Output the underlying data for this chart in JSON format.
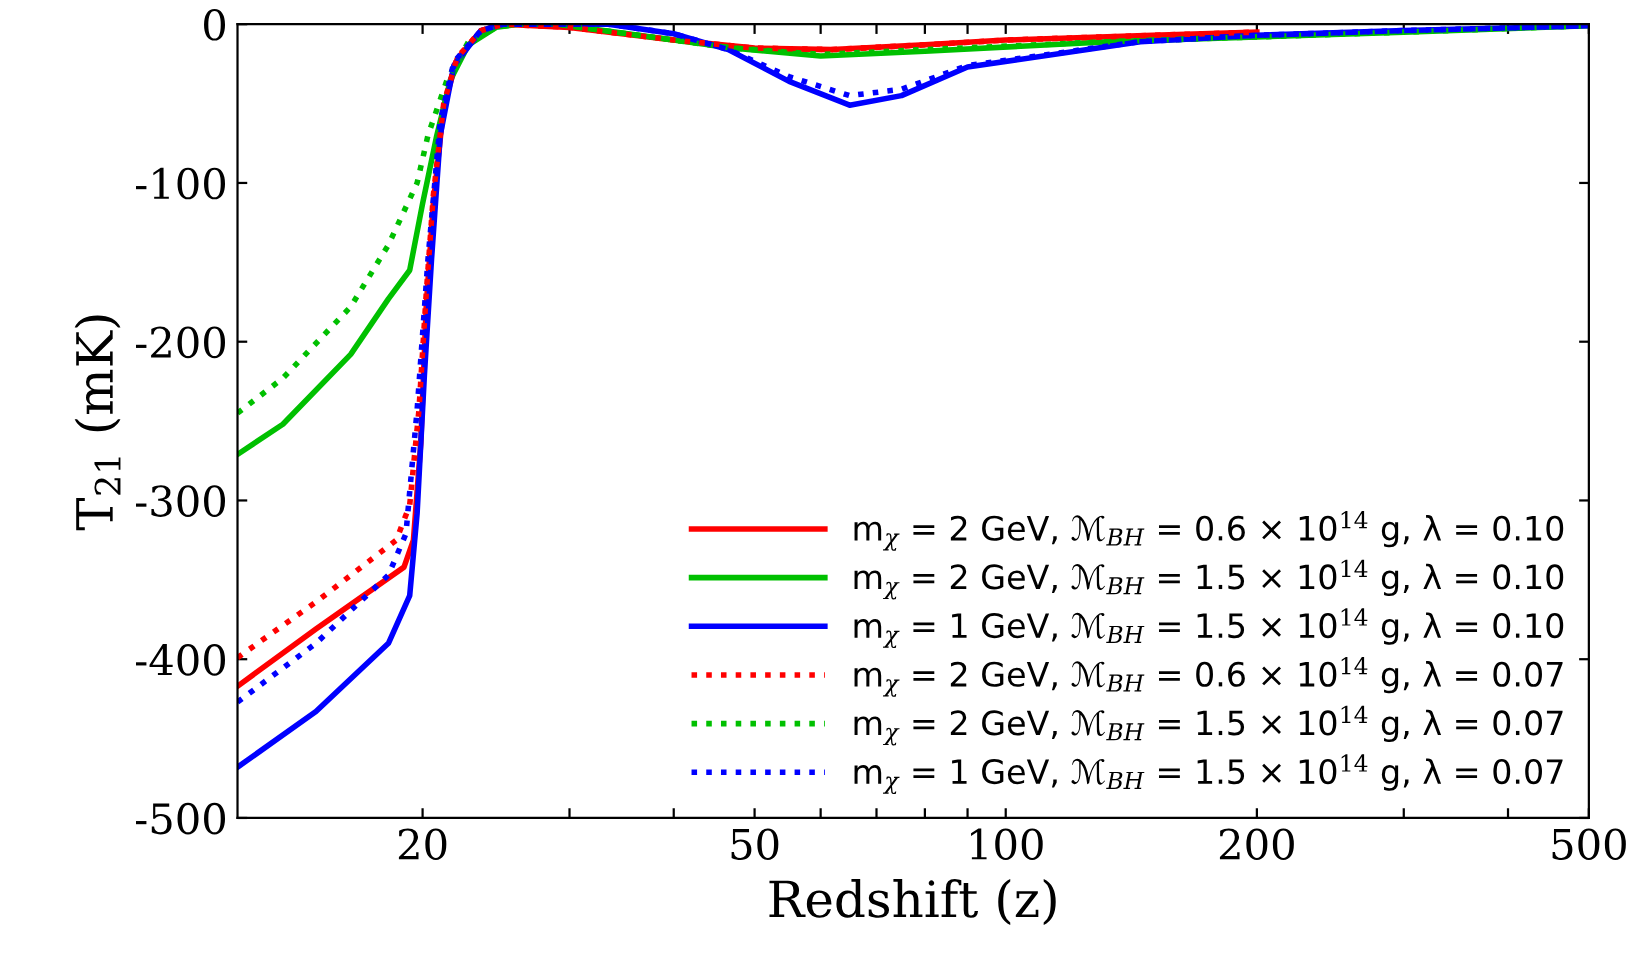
{
  "chart_data": {
    "type": "line",
    "xlabel": "Redshift (z)",
    "ylabel": "T$_{21}$ (mK)",
    "log": "x",
    "xlim": [
      12,
      500
    ],
    "ylim": [
      -500,
      0
    ],
    "xticks": [
      20,
      {
        "value": 30,
        "label": null
      },
      {
        "value": 40,
        "label": null
      },
      50,
      {
        "value": 60,
        "label": null
      },
      {
        "value": 70,
        "label": null
      },
      {
        "value": 80,
        "label": null
      },
      {
        "value": 90,
        "label": null
      },
      100,
      200,
      {
        "value": 300,
        "label": null
      },
      {
        "value": 400,
        "label": null
      },
      500
    ],
    "yticks": [
      -500,
      -400,
      -300,
      -200,
      -100,
      0
    ],
    "grid": false,
    "legend": "bottom right",
    "marker": "none",
    "series": [
      {
        "name": "m$_{χ}$ = 2 GeV, ℳ$_{BH}$ = 0.6 × 10$^{14}$ g, λ = 0.10",
        "color": "#ff0000",
        "line_style": "solid",
        "x": [
          12,
          14.9,
          19.0,
          19.5,
          19.9,
          20.2,
          20.6,
          21.2,
          22.0,
          23.5,
          25,
          30,
          40,
          50,
          62,
          80,
          100,
          150,
          200
        ],
        "values": [
          -417,
          -381,
          -342,
          -325,
          -264,
          -178,
          -113,
          -52,
          -22,
          -4,
          0,
          -2,
          -10,
          -15,
          -16,
          -13,
          -10,
          -7,
          -5
        ]
      },
      {
        "name": "m$_{χ}$ = 2 GeV, ℳ$_{BH}$ = 1.5 × 10$^{14}$ g, λ = 0.10",
        "color": "#00c000",
        "line_style": "solid",
        "x": [
          12,
          13.6,
          16.4,
          18.2,
          19.3,
          20.0,
          20.8,
          21.6,
          22.7,
          24.5,
          26,
          29,
          40,
          47,
          60,
          80,
          133,
          200,
          300,
          500
        ],
        "values": [
          -271,
          -252,
          -208,
          -173,
          -155,
          -113,
          -70,
          -35,
          -13,
          -2,
          0,
          0,
          -10,
          -15,
          -20,
          -17,
          -11,
          -8,
          -5,
          -1
        ]
      },
      {
        "name": "m$_{χ}$ = 1 GeV, ℳ$_{BH}$ = 1.5 × 10$^{14}$ g, λ = 0.10",
        "color": "#0000ff",
        "line_style": "solid",
        "x": [
          12,
          14.9,
          18.2,
          19.3,
          19.7,
          20.1,
          20.5,
          21.0,
          21.8,
          23.5,
          25,
          33.4,
          40,
          46.5,
          55,
          65,
          75,
          90,
          145,
          200,
          300,
          500
        ],
        "values": [
          -468,
          -433,
          -390,
          -360,
          -308,
          -221,
          -148,
          -70,
          -26,
          -4,
          0,
          0,
          -6,
          -16,
          -36,
          -51,
          -45,
          -27,
          -11,
          -7,
          -4,
          -1
        ]
      },
      {
        "name": "m$_{χ}$ = 2 GeV, ℳ$_{BH}$ = 0.6 × 10$^{14}$ g, λ = 0.07",
        "color": "#ff0000",
        "line_style": "dotted",
        "x": [
          12,
          14.9,
          18.6,
          19.3,
          19.8,
          20.2,
          20.6,
          21.2,
          22.0,
          23.5,
          25,
          30,
          40,
          50,
          62,
          80,
          100,
          150,
          200
        ],
        "values": [
          -399,
          -364,
          -325,
          -303,
          -243,
          -170,
          -108,
          -50,
          -21,
          -4,
          0,
          -2,
          -10,
          -15,
          -16,
          -13,
          -10,
          -7,
          -5
        ]
      },
      {
        "name": "m$_{χ}$ = 2 GeV, ℳ$_{BH}$ = 1.5 × 10$^{14}$ g, λ = 0.07",
        "color": "#00c000",
        "line_style": "dotted",
        "x": [
          12,
          13.6,
          16.4,
          18.2,
          19.7,
          20.3,
          21.4,
          22.7,
          24.5,
          26,
          29,
          40,
          47,
          60,
          80,
          133,
          200,
          300,
          500
        ],
        "values": [
          -245,
          -223,
          -178,
          -139,
          -100,
          -70,
          -35,
          -11,
          -2,
          0,
          0,
          -10,
          -15,
          -19,
          -16,
          -11,
          -8,
          -5,
          -1
        ]
      },
      {
        "name": "m$_{χ}$ = 1 GeV, ℳ$_{BH}$ = 1.5 × 10$^{14}$ g, λ = 0.07",
        "color": "#0000ff",
        "line_style": "dotted",
        "x": [
          12,
          14.9,
          18.2,
          19.1,
          19.7,
          20.3,
          21.0,
          21.8,
          23.5,
          25,
          33.4,
          40,
          46.5,
          55,
          65,
          75,
          90,
          145,
          200,
          300,
          500
        ],
        "values": [
          -427,
          -390,
          -347,
          -321,
          -243,
          -148,
          -61,
          -24,
          -4,
          0,
          0,
          -6,
          -16,
          -33,
          -45,
          -41,
          -26,
          -11,
          -7,
          -4,
          -1
        ]
      }
    ]
  }
}
